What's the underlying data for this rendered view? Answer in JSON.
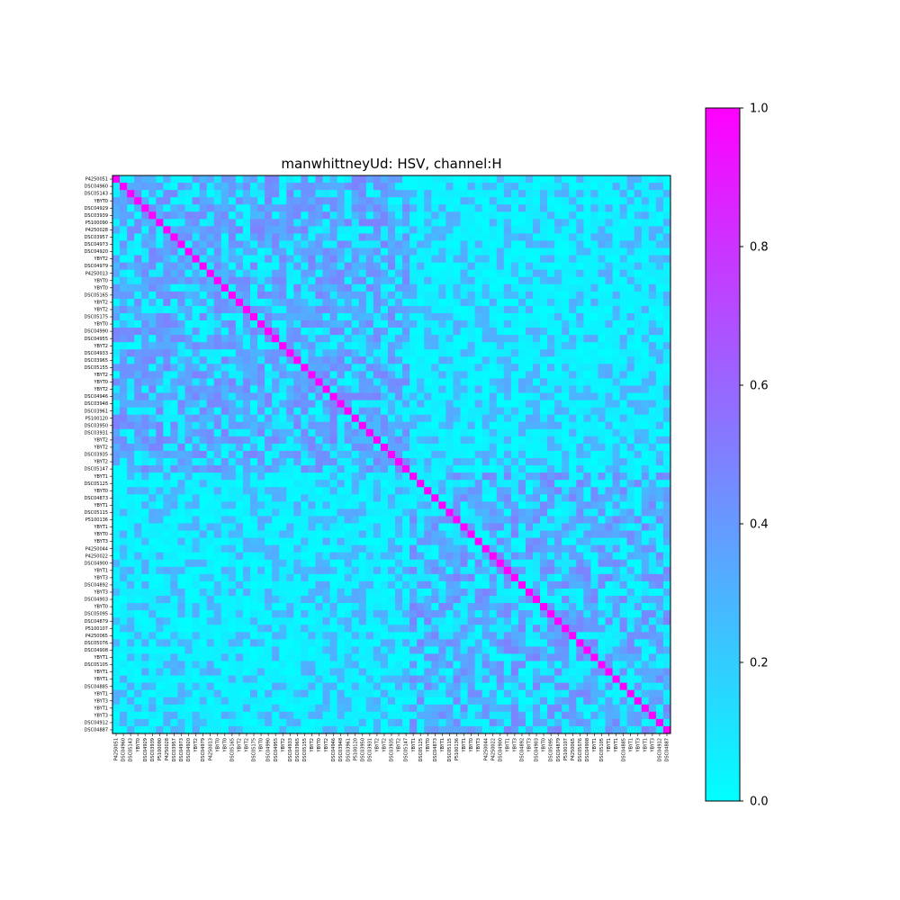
{
  "chart_data": {
    "type": "heatmap",
    "title": "manwhittneyUd: HSV, channel:H",
    "labels": [
      "P4250051",
      "DSC04960",
      "DSC05143",
      "YBYT0",
      "DSC04929",
      "DSC03939",
      "P5100090",
      "P4250028",
      "DSC03957",
      "DSC04973",
      "DSC04920",
      "YBYT2",
      "DSC04979",
      "P4250013",
      "YBYT0",
      "YBYT0",
      "DSC05165",
      "YBYT2",
      "YBYT2",
      "DSC05175",
      "YBYT0",
      "DSC04990",
      "DSC04955",
      "YBYT2",
      "DSC04933",
      "DSC03965",
      "DSC05155",
      "YBYT2",
      "YBYT0",
      "YBYT2",
      "DSC04946",
      "DSC03948",
      "DSC03961",
      "P5100120",
      "DSC03950",
      "DSC03931",
      "YBYT2",
      "YBYT2",
      "DSC03935",
      "YBYT2",
      "DSC05147",
      "YBYT1",
      "DSC05125",
      "YBYT0",
      "DSC04873",
      "YBYT1",
      "DSC05115",
      "P5100136",
      "YBYT1",
      "YBYT0",
      "YBYT3",
      "P4250044",
      "P4250022",
      "DSC04900",
      "YBYT1",
      "YBYT3",
      "DSC04892",
      "YBYT3",
      "DSC04903",
      "YBYT0",
      "DSC05095",
      "DSC04879",
      "P5100107",
      "P4250065",
      "DSC05076",
      "DSC04908",
      "YBYT1",
      "DSC05105",
      "YBYT1",
      "YBYT1",
      "DSC04885",
      "YBYT1",
      "YBYT3",
      "YBYT1",
      "YBYT3",
      "DSC04912",
      "DSC04887"
    ],
    "value_range": [
      0.0,
      1.0
    ],
    "diagonal_value": 1.0,
    "colormap": "cool",
    "colormap_endpoints": {
      "low": "#00ffff",
      "high": "#ff00ff"
    },
    "colorbar_ticks": [
      "0.0",
      "0.2",
      "0.4",
      "0.6",
      "0.8",
      "1.0"
    ],
    "groups": [
      {
        "start": 0,
        "end": 40
      },
      {
        "start": 41,
        "end": 76
      }
    ],
    "notes_values": "Off-diagonal cell values range mostly 0.0–0.5 (cyan to light blue/purple); diagonal cells are 1.0 (magenta)."
  }
}
